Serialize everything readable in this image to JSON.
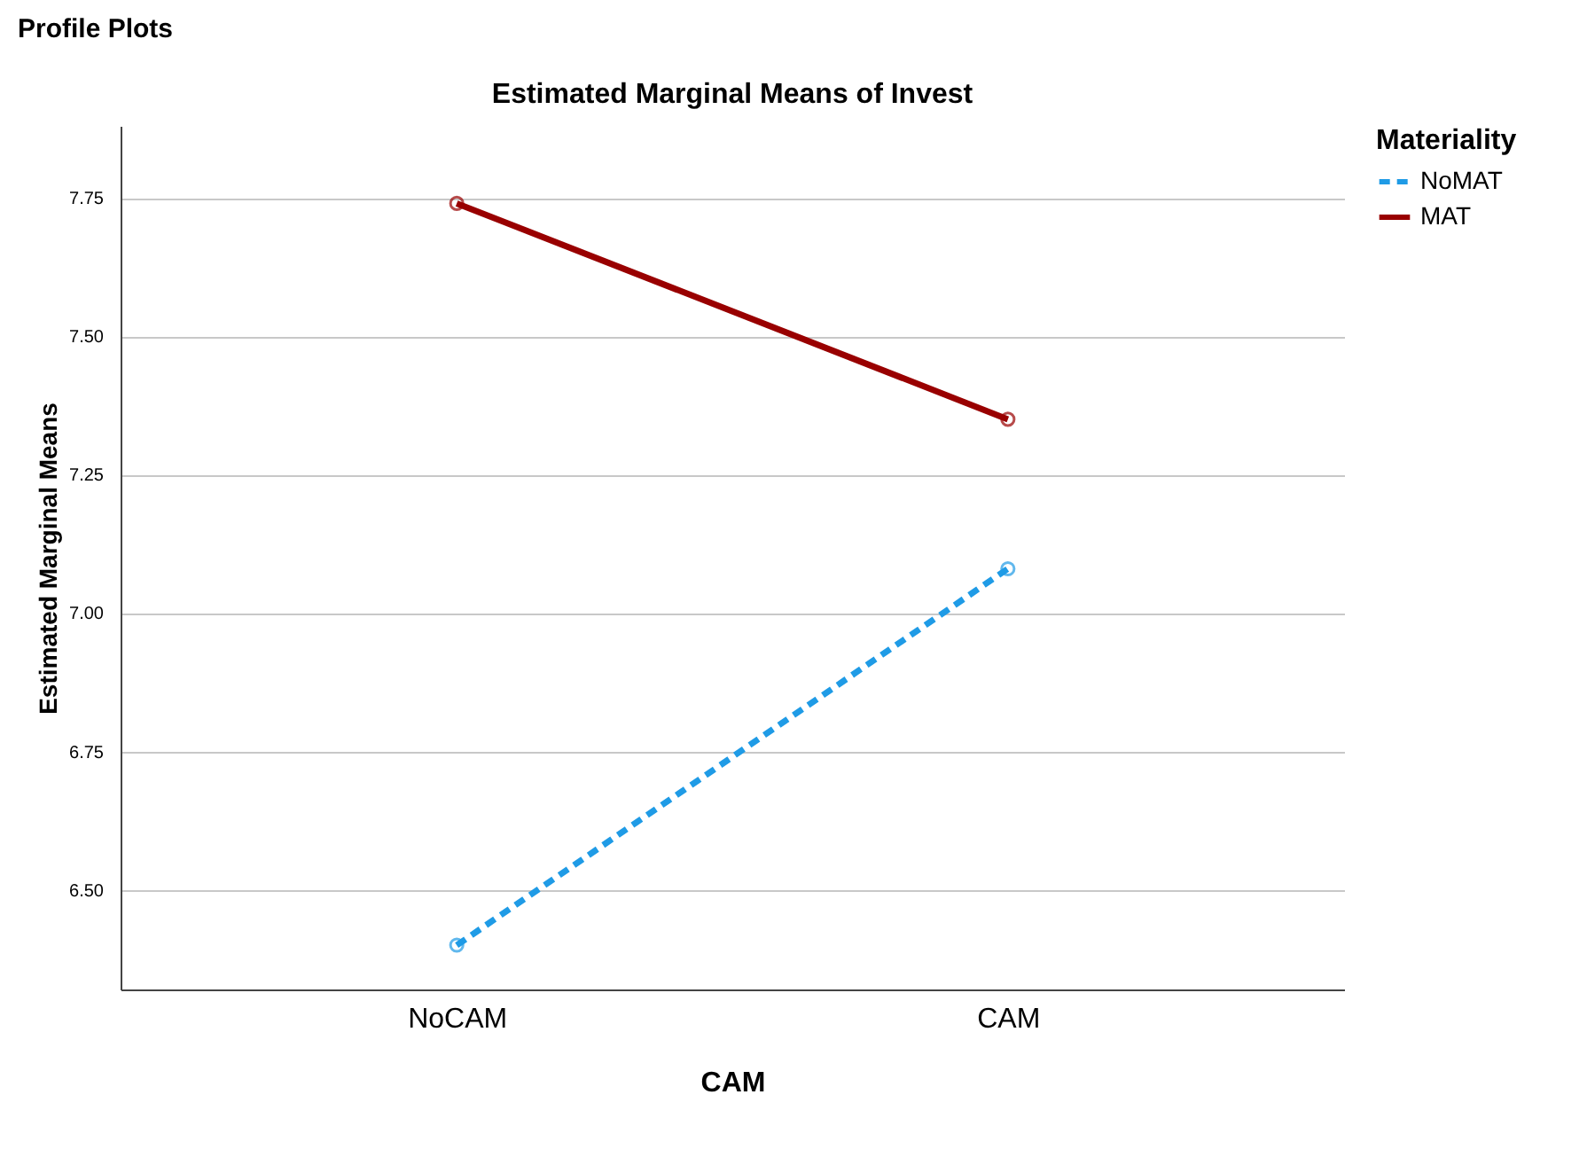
{
  "chart_data": {
    "type": "line",
    "title": "Estimated Marginal Means of Invest",
    "xlabel": "CAM",
    "ylabel": "Estimated Marginal Means",
    "legend_title": "Materiality",
    "annotations": [
      "Profile Plots"
    ],
    "categories": [
      "NoCAM",
      "CAM"
    ],
    "series": [
      {
        "name": "NoMAT",
        "color": "#1f9be6",
        "values": [
          6.4,
          7.08
        ],
        "line_style": "dashed"
      },
      {
        "name": "MAT",
        "color": "#990000",
        "values": [
          7.74,
          7.35
        ],
        "line_style": "solid"
      }
    ],
    "ylim": [
      6.32,
      7.88
    ],
    "yticks": [
      {
        "value": 6.5,
        "label": "6.50"
      },
      {
        "value": 6.75,
        "label": "6.75"
      },
      {
        "value": 7,
        "label": "7.00"
      },
      {
        "value": 7.25,
        "label": "7.25"
      },
      {
        "value": 7.5,
        "label": "7.50"
      },
      {
        "value": 7.75,
        "label": "7.75"
      }
    ],
    "grid": "y",
    "legend": "top right",
    "marker": "circle"
  }
}
